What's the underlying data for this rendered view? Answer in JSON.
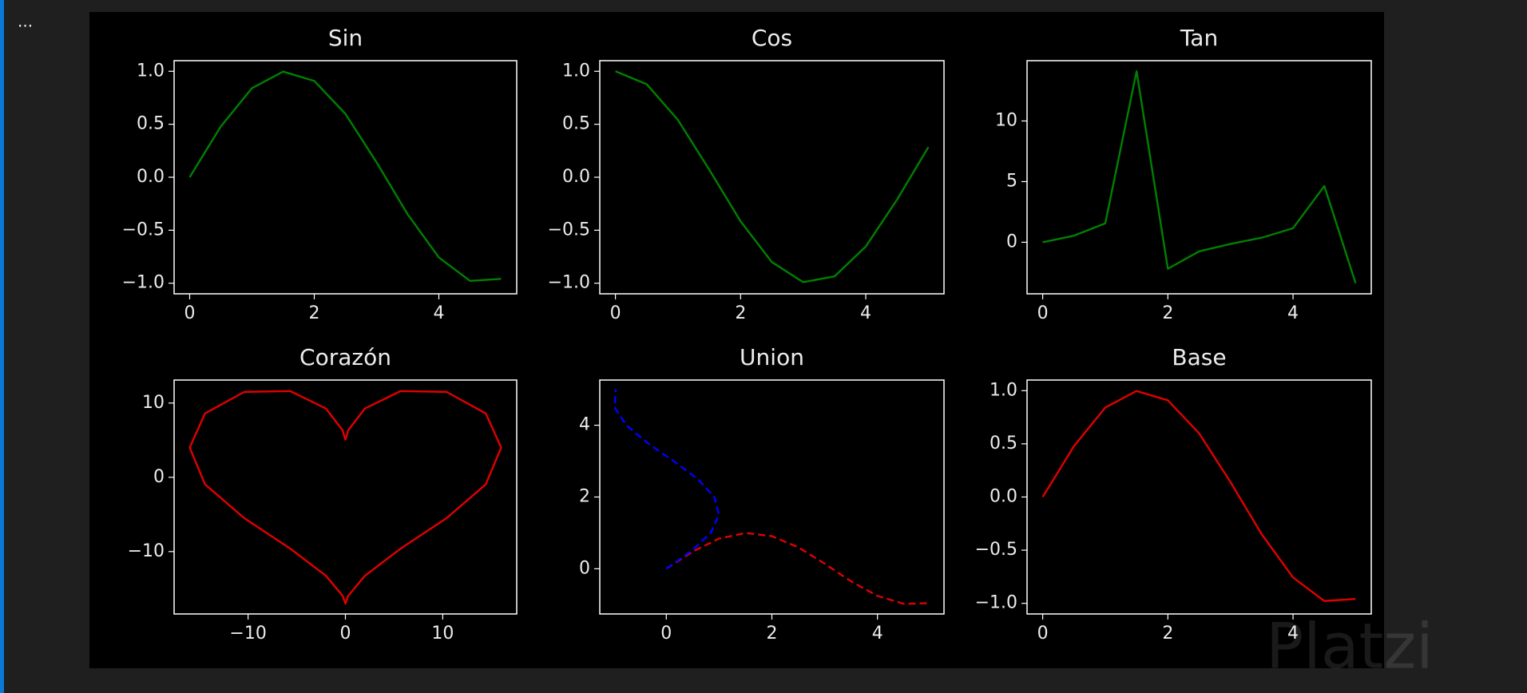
{
  "toolbar": {
    "ellipsis": "..."
  },
  "watermark": "Platzi",
  "chart_data": [
    {
      "type": "line",
      "title": "Sin",
      "series": [
        {
          "color": "#008000",
          "x": [
            0,
            0.5,
            1,
            1.5,
            2,
            2.5,
            3,
            3.5,
            4,
            4.5,
            5
          ],
          "values": [
            0,
            0.479,
            0.841,
            0.997,
            0.909,
            0.598,
            0.141,
            -0.351,
            -0.757,
            -0.978,
            -0.959
          ]
        }
      ],
      "xlim": [
        -0.25,
        5.25
      ],
      "xticks": [
        0,
        2,
        4
      ],
      "ylim": [
        -1.1,
        1.1
      ],
      "yticks": [
        {
          "value": -1,
          "label": "−1.0"
        },
        {
          "value": -0.5,
          "label": "−0.5"
        },
        {
          "value": 0,
          "label": "0.0"
        },
        0.5,
        {
          "value": 1,
          "label": "1.0"
        }
      ]
    },
    {
      "type": "line",
      "title": "Cos",
      "series": [
        {
          "color": "#008000",
          "x": [
            0,
            0.5,
            1,
            1.5,
            2,
            2.5,
            3,
            3.5,
            4,
            4.5,
            5
          ],
          "values": [
            1,
            0.878,
            0.54,
            0.071,
            -0.416,
            -0.801,
            -0.99,
            -0.936,
            -0.654,
            -0.211,
            0.284
          ]
        }
      ],
      "xlim": [
        -0.25,
        5.25
      ],
      "xticks": [
        0,
        2,
        4
      ],
      "ylim": [
        -1.1,
        1.1
      ],
      "yticks": [
        {
          "value": -1,
          "label": "−1.0"
        },
        {
          "value": -0.5,
          "label": "−0.5"
        },
        {
          "value": 0,
          "label": "0.0"
        },
        0.5,
        {
          "value": 1,
          "label": "1.0"
        }
      ]
    },
    {
      "type": "line",
      "title": "Tan",
      "series": [
        {
          "color": "#008000",
          "x": [
            0,
            0.5,
            1,
            1.5,
            2,
            2.5,
            3,
            3.5,
            4,
            4.5,
            5
          ],
          "values": [
            0,
            0.546,
            1.557,
            14.1,
            -2.185,
            -0.747,
            -0.143,
            0.375,
            1.158,
            4.637,
            -3.381
          ]
        }
      ],
      "xlim": [
        -0.25,
        5.25
      ],
      "xticks": [
        0,
        2,
        4
      ],
      "ylim": [
        -4.25,
        14.97
      ],
      "yticks": [
        0,
        5,
        10
      ]
    },
    {
      "type": "line",
      "title": "Corazón",
      "series": [
        {
          "color": "#e00000",
          "x": [
            0,
            0.28,
            2,
            5.66,
            10.39,
            14.42,
            16,
            14.42,
            10.39,
            5.66,
            2,
            0.28,
            0,
            -0.28,
            -2,
            -5.66,
            -10.39,
            -14.42,
            -16,
            -14.42,
            -10.39,
            -5.66,
            -2,
            -0.28,
            0
          ],
          "values": [
            5,
            6.31,
            9.26,
            11.61,
            11.5,
            8.61,
            4,
            -0.95,
            -5.5,
            -9.61,
            -13.26,
            -15.97,
            -17,
            -15.97,
            -13.26,
            -9.61,
            -5.5,
            -0.95,
            4,
            8.61,
            11.5,
            11.61,
            9.26,
            6.31,
            5
          ]
        }
      ],
      "xlim": [
        -17.6,
        17.6
      ],
      "xticks": [
        {
          "value": -10,
          "label": "−10"
        },
        0,
        10
      ],
      "ylim": [
        -18.4,
        13.1
      ],
      "yticks": [
        {
          "value": -10,
          "label": "−10"
        },
        0,
        10
      ]
    },
    {
      "type": "line",
      "title": "Union",
      "linestyle": "dashed",
      "series": [
        {
          "color": "#e00000",
          "x": [
            0,
            0.5,
            1,
            1.5,
            2,
            2.5,
            3,
            3.5,
            4,
            4.5,
            5
          ],
          "values": [
            0,
            0.479,
            0.841,
            0.997,
            0.909,
            0.598,
            0.141,
            -0.351,
            -0.757,
            -0.978,
            -0.959
          ]
        },
        {
          "color": "#0000ff",
          "x": [
            0,
            0.479,
            0.841,
            0.997,
            0.909,
            0.598,
            0.141,
            -0.351,
            -0.757,
            -0.978,
            -0.959
          ],
          "values": [
            0,
            0.5,
            1,
            1.5,
            2,
            2.5,
            3,
            3.5,
            4,
            4.5,
            5
          ]
        }
      ],
      "xlim": [
        -1.26,
        5.26
      ],
      "xticks": [
        0,
        2,
        4
      ],
      "ylim": [
        -1.26,
        5.26
      ],
      "yticks": [
        0,
        2,
        4
      ]
    },
    {
      "type": "line",
      "title": "Base",
      "series": [
        {
          "color": "#e00000",
          "x": [
            0,
            0.5,
            1,
            1.5,
            2,
            2.5,
            3,
            3.5,
            4,
            4.5,
            5
          ],
          "values": [
            0,
            0.479,
            0.841,
            0.997,
            0.909,
            0.598,
            0.141,
            -0.351,
            -0.757,
            -0.978,
            -0.959
          ]
        }
      ],
      "xlim": [
        -0.25,
        5.25
      ],
      "xticks": [
        0,
        2,
        4
      ],
      "ylim": [
        -1.1,
        1.1
      ],
      "yticks": [
        {
          "value": -1,
          "label": "−1.0"
        },
        {
          "value": -0.5,
          "label": "−0.5"
        },
        {
          "value": 0,
          "label": "0.0"
        },
        0.5,
        {
          "value": 1,
          "label": "1.0"
        }
      ]
    }
  ]
}
